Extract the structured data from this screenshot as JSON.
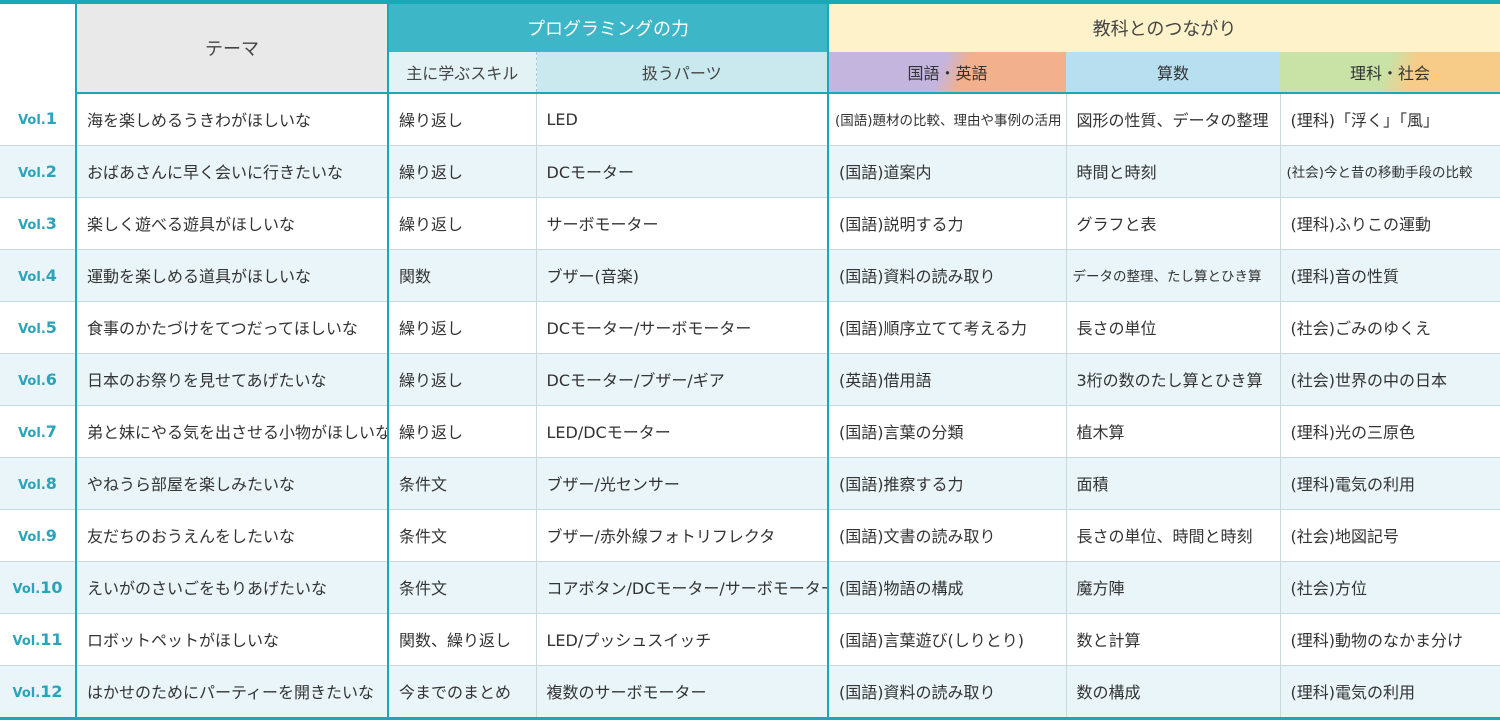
{
  "header": {
    "theme": "テーマ",
    "programming": "プログラミングの力",
    "subjects": "教科とのつながり",
    "skill": "主に学ぶスキル",
    "parts": "扱うパーツ",
    "language": "国語・英語",
    "math": "算数",
    "science_social": "理科・社会"
  },
  "accent_color": "#1aa7b6",
  "rows": [
    {
      "vol_prefix": "Vol.",
      "vol_num": "1",
      "theme": "海を楽しめるうきわがほしいな",
      "skill": "繰り返し",
      "parts": "LED",
      "lang": "(国語)題材の比較、理由や事例の活用",
      "math": "図形の性質、データの整理",
      "sci": "(理科)「浮く」「風」"
    },
    {
      "vol_prefix": "Vol.",
      "vol_num": "2",
      "theme": "おばあさんに早く会いに行きたいな",
      "skill": "繰り返し",
      "parts": "DCモーター",
      "lang": "(国語)道案内",
      "math": "時間と時刻",
      "sci": "(社会)今と昔の移動手段の比較"
    },
    {
      "vol_prefix": "Vol.",
      "vol_num": "3",
      "theme": "楽しく遊べる遊具がほしいな",
      "skill": "繰り返し",
      "parts": "サーボモーター",
      "lang": "(国語)説明する力",
      "math": "グラフと表",
      "sci": "(理科)ふりこの運動"
    },
    {
      "vol_prefix": "Vol.",
      "vol_num": "4",
      "theme": "運動を楽しめる道具がほしいな",
      "skill": "関数",
      "parts": "ブザー(音楽)",
      "lang": "(国語)資料の読み取り",
      "math": "データの整理、たし算とひき算",
      "sci": "(理科)音の性質"
    },
    {
      "vol_prefix": "Vol.",
      "vol_num": "5",
      "theme": "食事のかたづけをてつだってほしいな",
      "skill": "繰り返し",
      "parts": "DCモーター/サーボモーター",
      "lang": "(国語)順序立てて考える力",
      "math": "長さの単位",
      "sci": "(社会)ごみのゆくえ"
    },
    {
      "vol_prefix": "Vol.",
      "vol_num": "6",
      "theme": "日本のお祭りを見せてあげたいな",
      "skill": "繰り返し",
      "parts": "DCモーター/ブザー/ギア",
      "lang": "(英語)借用語",
      "math": "3桁の数のたし算とひき算",
      "sci": "(社会)世界の中の日本"
    },
    {
      "vol_prefix": "Vol.",
      "vol_num": "7",
      "theme": "弟と妹にやる気を出させる小物がほしいな",
      "skill": "繰り返し",
      "parts": "LED/DCモーター",
      "lang": "(国語)言葉の分類",
      "math": "植木算",
      "sci": "(理科)光の三原色"
    },
    {
      "vol_prefix": "Vol.",
      "vol_num": "8",
      "theme": "やねうら部屋を楽しみたいな",
      "skill": "条件文",
      "parts": "ブザー/光センサー",
      "lang": "(国語)推察する力",
      "math": "面積",
      "sci": "(理科)電気の利用"
    },
    {
      "vol_prefix": "Vol.",
      "vol_num": "9",
      "theme": "友だちのおうえんをしたいな",
      "skill": "条件文",
      "parts": "ブザー/赤外線フォトリフレクタ",
      "lang": "(国語)文書の読み取り",
      "math": "長さの単位、時間と時刻",
      "sci": "(社会)地図記号"
    },
    {
      "vol_prefix": "Vol.",
      "vol_num": "10",
      "theme": "えいがのさいごをもりあげたいな",
      "skill": "条件文",
      "parts": "コアボタン/DCモーター/サーボモーター",
      "lang": "(国語)物語の構成",
      "math": "魔方陣",
      "sci": "(社会)方位"
    },
    {
      "vol_prefix": "Vol.",
      "vol_num": "11",
      "theme": "ロボットペットがほしいな",
      "skill": "関数、繰り返し",
      "parts": "LED/プッシュスイッチ",
      "lang": "(国語)言葉遊び(しりとり)",
      "math": "数と計算",
      "sci": "(理科)動物のなかま分け"
    },
    {
      "vol_prefix": "Vol.",
      "vol_num": "12",
      "theme": "はかせのためにパーティーを開きたいな",
      "skill": "今までのまとめ",
      "parts": "複数のサーボモーター",
      "lang": "(国語)資料の読み取り",
      "math": "数の構成",
      "sci": "(理科)電気の利用"
    }
  ]
}
